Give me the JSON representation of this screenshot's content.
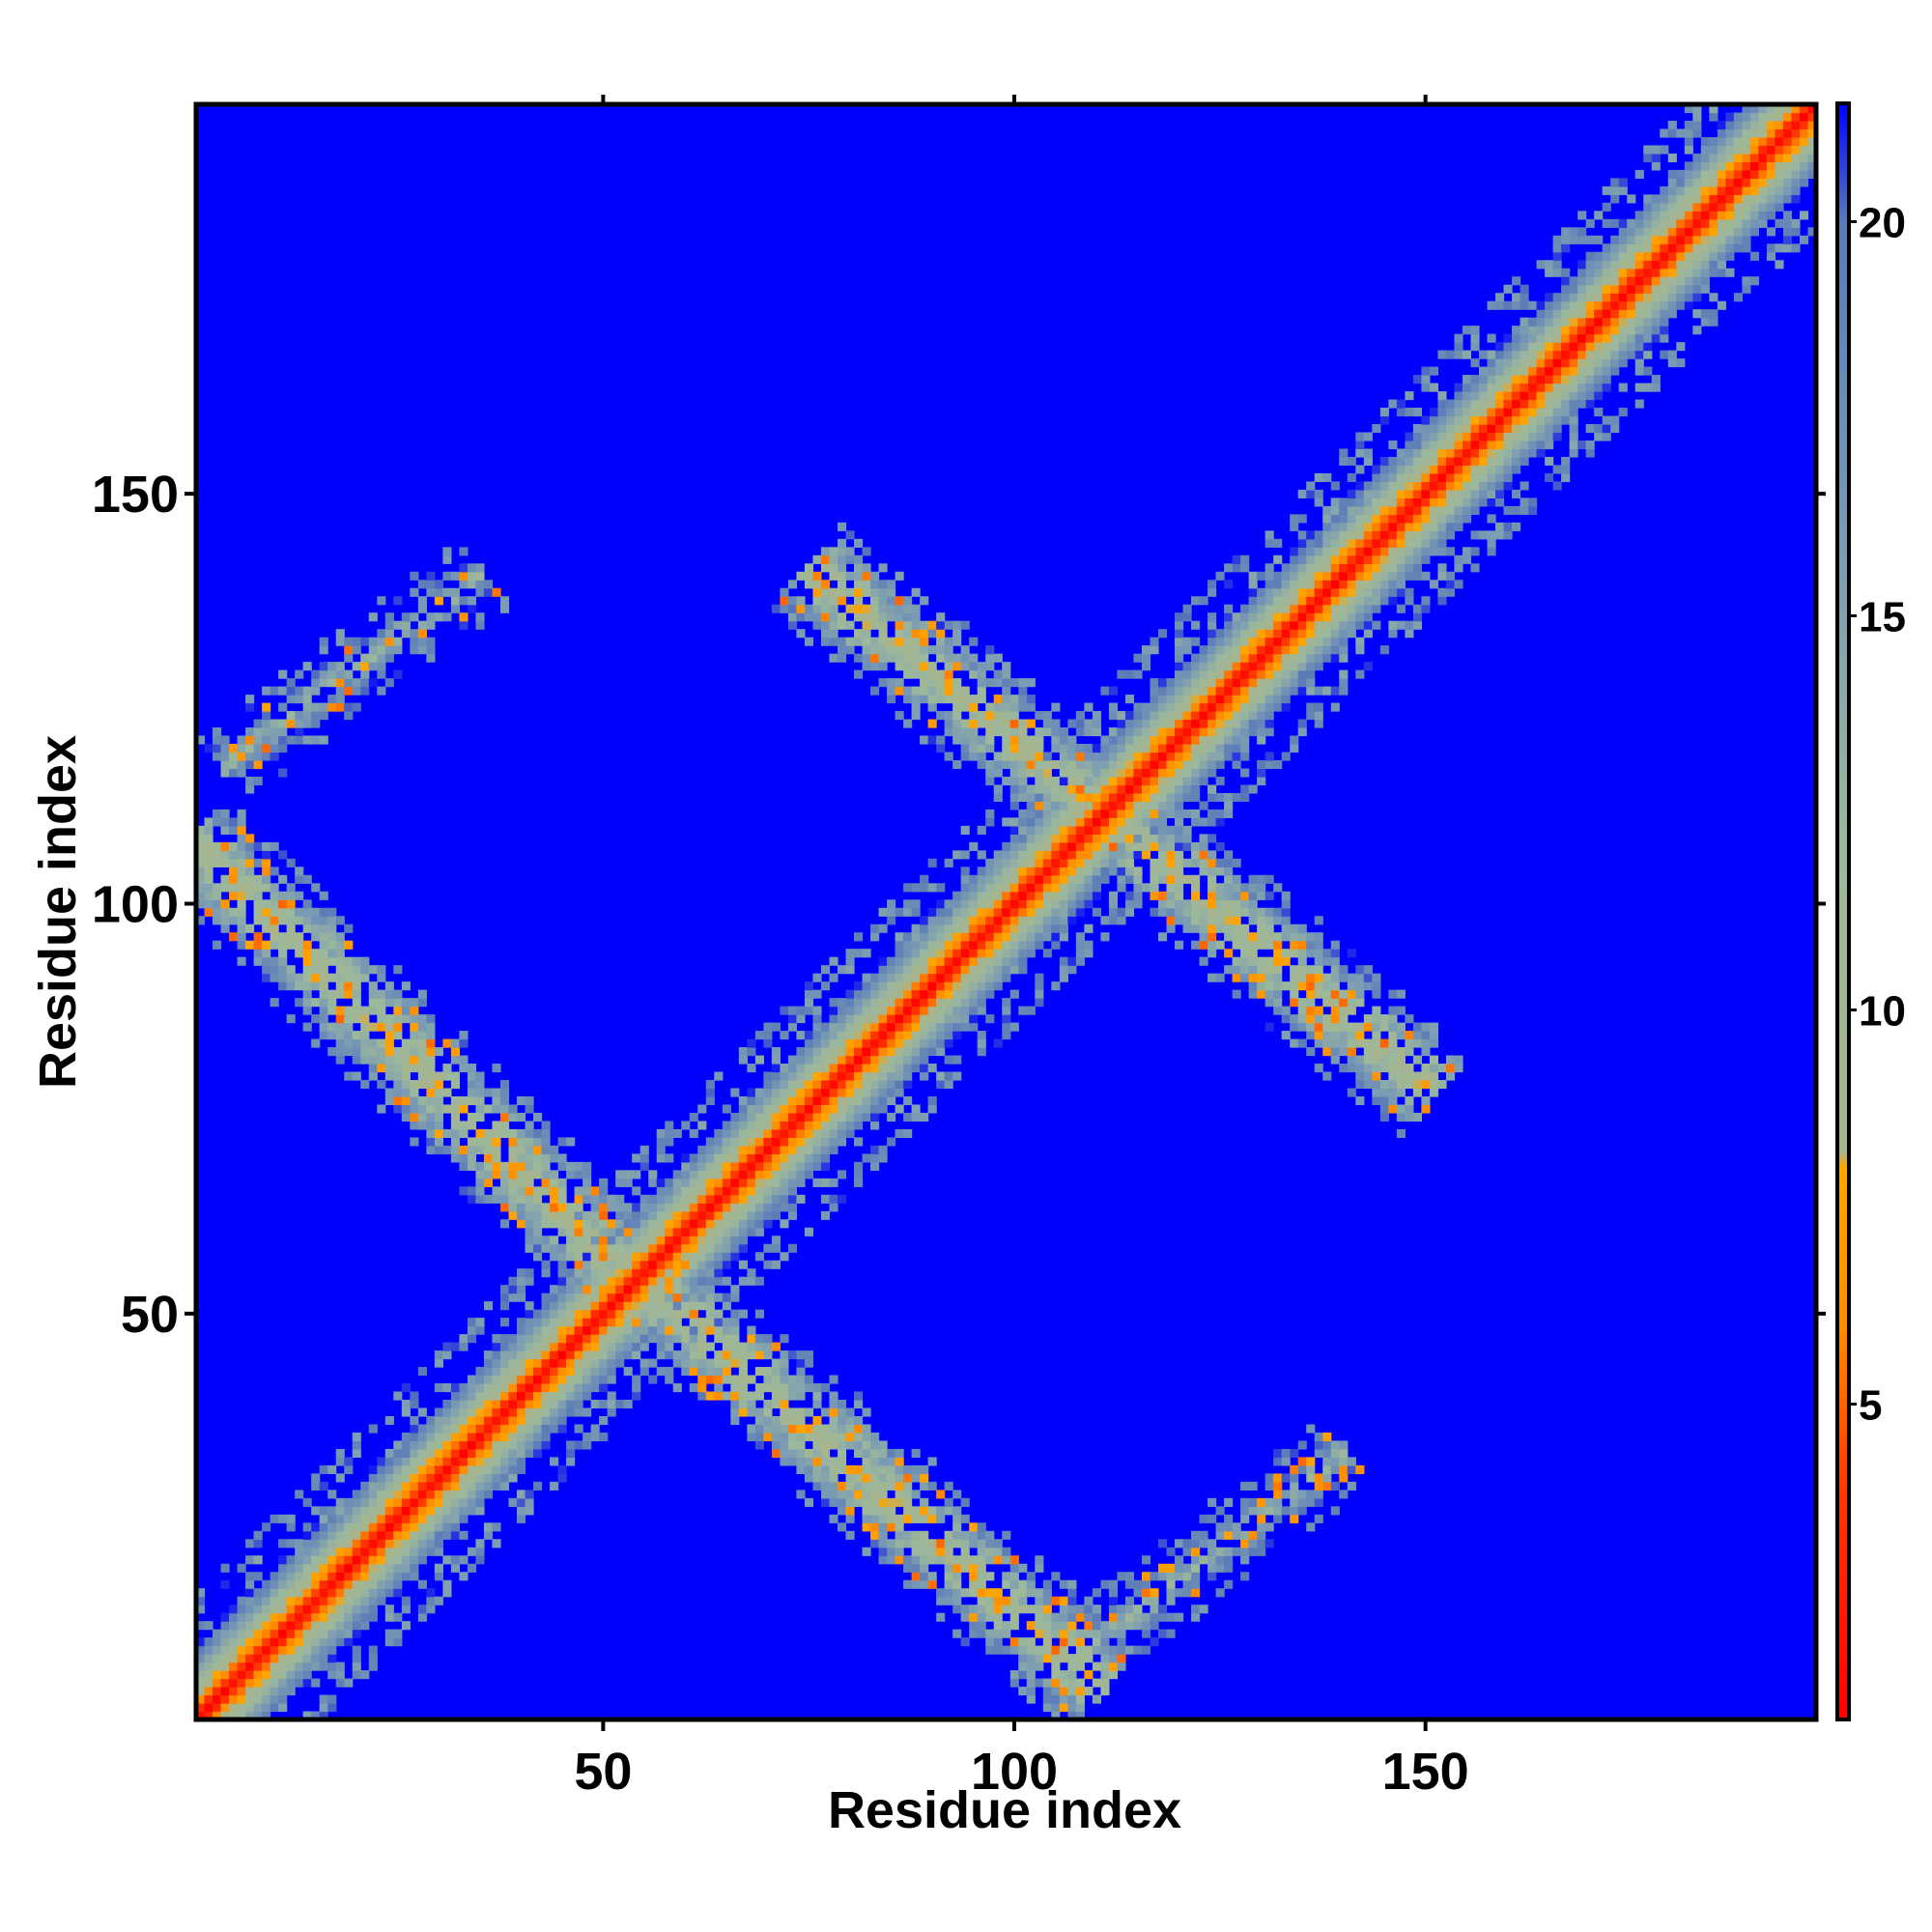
{
  "chart_data": {
    "type": "heatmap",
    "title": "",
    "xlabel": "Residue index",
    "ylabel": "Residue index",
    "n_residues": 197,
    "x_range": [
      1,
      197
    ],
    "y_range": [
      1,
      197
    ],
    "x_ticks": [
      50,
      100,
      150
    ],
    "y_ticks": [
      50,
      100,
      150
    ],
    "x_tick_labels": [
      "50",
      "100",
      "150"
    ],
    "y_tick_labels": [
      "50",
      "100",
      "150"
    ],
    "colorbar": {
      "range": [
        1,
        21.5
      ],
      "ticks": [
        5,
        10,
        15,
        20
      ],
      "tick_labels": [
        "5",
        "10",
        "15",
        "20"
      ],
      "stops": [
        {
          "value": 1,
          "color": "#ff0000"
        },
        {
          "value": 4,
          "color": "#ff3a00"
        },
        {
          "value": 6,
          "color": "#ff8c00"
        },
        {
          "value": 8,
          "color": "#ffa500"
        },
        {
          "value": 8.2,
          "color": "#a8b48c"
        },
        {
          "value": 12,
          "color": "#9cb89c"
        },
        {
          "value": 16,
          "color": "#7a9ab4"
        },
        {
          "value": 20,
          "color": "#5a7ab8"
        },
        {
          "value": 21.5,
          "color": "#0000ff"
        }
      ]
    },
    "background_value": 21.5,
    "background_color": "#0000ff",
    "contact_bands": [
      {
        "name": "main-diagonal",
        "from": [
          1,
          1
        ],
        "to": [
          197,
          197
        ],
        "half_width": 9,
        "core_value": 1.5
      },
      {
        "name": "antiparallel-upper-left",
        "from": [
          1,
          107
        ],
        "to": [
          52,
          55
        ],
        "half_width": 5,
        "core_value": 9
      },
      {
        "name": "antiparallel-upper-left-ext",
        "from": [
          4,
          117
        ],
        "to": [
          35,
          140
        ],
        "half_width": 3,
        "core_value": 13
      },
      {
        "name": "antiparallel-lower",
        "from": [
          57,
          52
        ],
        "to": [
          110,
          5
        ],
        "half_width": 5,
        "core_value": 9
      },
      {
        "name": "antiparallel-lower-ext",
        "from": [
          110,
          10
        ],
        "to": [
          140,
          33
        ],
        "half_width": 3,
        "core_value": 13
      },
      {
        "name": "antiparallel-upper-right",
        "from": [
          76,
          140
        ],
        "to": [
          150,
          78
        ],
        "half_width": 5,
        "core_value": 9
      }
    ]
  }
}
